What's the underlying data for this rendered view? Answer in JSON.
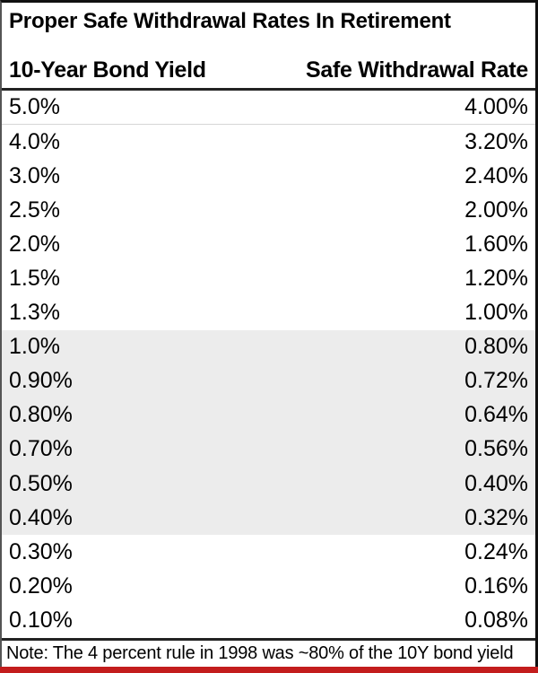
{
  "chart_data": {
    "type": "table",
    "title": "Proper Safe Withdrawal Rates In Retirement",
    "columns": [
      "10-Year Bond Yield",
      "Safe Withdrawal Rate"
    ],
    "rows": [
      {
        "bond_yield": "5.0%",
        "swr": "4.00%",
        "highlighted": false
      },
      {
        "bond_yield": "4.0%",
        "swr": "3.20%",
        "highlighted": false
      },
      {
        "bond_yield": "3.0%",
        "swr": "2.40%",
        "highlighted": false
      },
      {
        "bond_yield": "2.5%",
        "swr": "2.00%",
        "highlighted": false
      },
      {
        "bond_yield": "2.0%",
        "swr": "1.60%",
        "highlighted": false
      },
      {
        "bond_yield": "1.5%",
        "swr": "1.20%",
        "highlighted": false
      },
      {
        "bond_yield": "1.3%",
        "swr": "1.00%",
        "highlighted": false
      },
      {
        "bond_yield": "1.0%",
        "swr": "0.80%",
        "highlighted": true
      },
      {
        "bond_yield": "0.90%",
        "swr": "0.72%",
        "highlighted": true
      },
      {
        "bond_yield": "0.80%",
        "swr": "0.64%",
        "highlighted": true
      },
      {
        "bond_yield": "0.70%",
        "swr": "0.56%",
        "highlighted": true
      },
      {
        "bond_yield": "0.50%",
        "swr": "0.40%",
        "highlighted": true
      },
      {
        "bond_yield": "0.40%",
        "swr": "0.32%",
        "highlighted": true
      },
      {
        "bond_yield": "0.30%",
        "swr": "0.24%",
        "highlighted": false
      },
      {
        "bond_yield": "0.20%",
        "swr": "0.16%",
        "highlighted": false
      },
      {
        "bond_yield": "0.10%",
        "swr": "0.08%",
        "highlighted": false
      }
    ],
    "note": "Note: The 4 percent rule in 1998 was ~80% of the 10Y bond yield",
    "layout_hints": {
      "legend": "none",
      "grid": "off",
      "highlight_band_rows": "1.0% through 0.40%"
    },
    "colors": {
      "highlight_row": "#ececec",
      "accent_bar": "#c31d1d",
      "border": "#111111",
      "text": "#000000"
    }
  }
}
